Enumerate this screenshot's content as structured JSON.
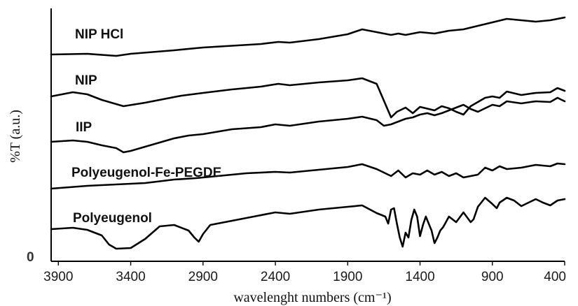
{
  "chart_data": {
    "type": "line",
    "xlabel": "wavelenght  numbers (cm⁻¹)",
    "ylabel": "%T (a.u.)",
    "xlim": [
      3950,
      400
    ],
    "xticks": [
      3900,
      3400,
      2900,
      2400,
      1900,
      1400,
      900,
      400
    ],
    "ytick_labels": [
      "0"
    ],
    "grid": false,
    "series": [
      {
        "name": "NIP HCl",
        "points": [
          [
            3950,
            78
          ],
          [
            3700,
            77
          ],
          [
            3500,
            80
          ],
          [
            3400,
            77
          ],
          [
            3100,
            72
          ],
          [
            2900,
            68
          ],
          [
            2500,
            63
          ],
          [
            2380,
            60
          ],
          [
            2300,
            61
          ],
          [
            2100,
            56
          ],
          [
            1900,
            49
          ],
          [
            1800,
            42
          ],
          [
            1700,
            46
          ],
          [
            1600,
            50
          ],
          [
            1550,
            48
          ],
          [
            1500,
            50
          ],
          [
            1400,
            46
          ],
          [
            1300,
            48
          ],
          [
            1200,
            44
          ],
          [
            1100,
            42
          ],
          [
            1000,
            37
          ],
          [
            900,
            32
          ],
          [
            800,
            27
          ],
          [
            700,
            29
          ],
          [
            600,
            31
          ],
          [
            500,
            29
          ],
          [
            400,
            25
          ]
        ]
      },
      {
        "name": "NIP",
        "points": [
          [
            3950,
            138
          ],
          [
            3800,
            132
          ],
          [
            3700,
            135
          ],
          [
            3600,
            143
          ],
          [
            3450,
            152
          ],
          [
            3300,
            147
          ],
          [
            3050,
            137
          ],
          [
            2900,
            133
          ],
          [
            2700,
            128
          ],
          [
            2500,
            124
          ],
          [
            2380,
            120
          ],
          [
            2300,
            122
          ],
          [
            2100,
            118
          ],
          [
            1900,
            115
          ],
          [
            1800,
            112
          ],
          [
            1700,
            120
          ],
          [
            1600,
            168
          ],
          [
            1560,
            160
          ],
          [
            1500,
            154
          ],
          [
            1450,
            162
          ],
          [
            1400,
            153
          ],
          [
            1300,
            158
          ],
          [
            1250,
            152
          ],
          [
            1200,
            155
          ],
          [
            1150,
            160
          ],
          [
            1100,
            164
          ],
          [
            1050,
            152
          ],
          [
            1000,
            146
          ],
          [
            950,
            140
          ],
          [
            900,
            138
          ],
          [
            850,
            140
          ],
          [
            800,
            131
          ],
          [
            700,
            136
          ],
          [
            600,
            133
          ],
          [
            500,
            132
          ],
          [
            450,
            126
          ],
          [
            400,
            130
          ]
        ]
      },
      {
        "name": "IIP",
        "points": [
          [
            3950,
            203
          ],
          [
            3800,
            201
          ],
          [
            3700,
            203
          ],
          [
            3600,
            208
          ],
          [
            3500,
            212
          ],
          [
            3450,
            218
          ],
          [
            3400,
            216
          ],
          [
            3300,
            210
          ],
          [
            3100,
            198
          ],
          [
            3000,
            194
          ],
          [
            2900,
            192
          ],
          [
            2700,
            185
          ],
          [
            2500,
            182
          ],
          [
            2400,
            178
          ],
          [
            2300,
            180
          ],
          [
            2100,
            174
          ],
          [
            1900,
            170
          ],
          [
            1800,
            167
          ],
          [
            1700,
            172
          ],
          [
            1650,
            180
          ],
          [
            1600,
            178
          ],
          [
            1550,
            174
          ],
          [
            1500,
            170
          ],
          [
            1450,
            168
          ],
          [
            1400,
            164
          ],
          [
            1350,
            162
          ],
          [
            1300,
            165
          ],
          [
            1250,
            162
          ],
          [
            1200,
            158
          ],
          [
            1150,
            154
          ],
          [
            1100,
            150
          ],
          [
            1050,
            156
          ],
          [
            1000,
            160
          ],
          [
            950,
            155
          ],
          [
            900,
            150
          ],
          [
            850,
            152
          ],
          [
            800,
            145
          ],
          [
            700,
            148
          ],
          [
            600,
            145
          ],
          [
            500,
            146
          ],
          [
            450,
            140
          ],
          [
            400,
            145
          ]
        ]
      },
      {
        "name": "Polyeugenol-Fe-PEGDE",
        "points": [
          [
            3950,
            270
          ],
          [
            3700,
            266
          ],
          [
            3500,
            264
          ],
          [
            3300,
            262
          ],
          [
            3100,
            257
          ],
          [
            2950,
            255
          ],
          [
            2800,
            252
          ],
          [
            2600,
            248
          ],
          [
            2400,
            246
          ],
          [
            2300,
            247
          ],
          [
            2100,
            243
          ],
          [
            1900,
            239
          ],
          [
            1800,
            235
          ],
          [
            1700,
            242
          ],
          [
            1600,
            252
          ],
          [
            1550,
            244
          ],
          [
            1500,
            254
          ],
          [
            1450,
            248
          ],
          [
            1400,
            250
          ],
          [
            1350,
            244
          ],
          [
            1300,
            250
          ],
          [
            1250,
            246
          ],
          [
            1200,
            252
          ],
          [
            1150,
            248
          ],
          [
            1100,
            254
          ],
          [
            1000,
            250
          ],
          [
            950,
            240
          ],
          [
            900,
            244
          ],
          [
            850,
            238
          ],
          [
            800,
            242
          ],
          [
            700,
            240
          ],
          [
            600,
            236
          ],
          [
            500,
            238
          ],
          [
            450,
            234
          ],
          [
            400,
            235
          ]
        ]
      },
      {
        "name": "Polyeugenol",
        "points": [
          [
            3950,
            328
          ],
          [
            3800,
            326
          ],
          [
            3700,
            329
          ],
          [
            3600,
            337
          ],
          [
            3550,
            350
          ],
          [
            3500,
            356
          ],
          [
            3400,
            355
          ],
          [
            3300,
            342
          ],
          [
            3200,
            324
          ],
          [
            3100,
            322
          ],
          [
            3000,
            330
          ],
          [
            2960,
            340
          ],
          [
            2930,
            346
          ],
          [
            2900,
            335
          ],
          [
            2850,
            322
          ],
          [
            2700,
            316
          ],
          [
            2550,
            310
          ],
          [
            2400,
            304
          ],
          [
            2300,
            306
          ],
          [
            2100,
            300
          ],
          [
            1900,
            296
          ],
          [
            1800,
            294
          ],
          [
            1700,
            305
          ],
          [
            1640,
            310
          ],
          [
            1620,
            320
          ],
          [
            1600,
            300
          ],
          [
            1580,
            298
          ],
          [
            1560,
            320
          ],
          [
            1540,
            340
          ],
          [
            1520,
            353
          ],
          [
            1500,
            333
          ],
          [
            1480,
            340
          ],
          [
            1460,
            315
          ],
          [
            1440,
            300
          ],
          [
            1420,
            310
          ],
          [
            1400,
            338
          ],
          [
            1380,
            322
          ],
          [
            1360,
            310
          ],
          [
            1340,
            320
          ],
          [
            1320,
            330
          ],
          [
            1300,
            348
          ],
          [
            1280,
            340
          ],
          [
            1260,
            330
          ],
          [
            1240,
            325
          ],
          [
            1200,
            310
          ],
          [
            1150,
            318
          ],
          [
            1100,
            304
          ],
          [
            1050,
            318
          ],
          [
            1030,
            314
          ],
          [
            1000,
            296
          ],
          [
            950,
            283
          ],
          [
            900,
            292
          ],
          [
            870,
            298
          ],
          [
            850,
            290
          ],
          [
            800,
            283
          ],
          [
            750,
            287
          ],
          [
            700,
            295
          ],
          [
            650,
            290
          ],
          [
            600,
            285
          ],
          [
            550,
            290
          ],
          [
            500,
            294
          ],
          [
            450,
            287
          ],
          [
            400,
            285
          ]
        ]
      }
    ],
    "series_label_positions": [
      "NIP HCl",
      "NIP",
      "IIP",
      "Polyeugenol-Fe-PEGDE",
      "Polyeugenol"
    ]
  }
}
